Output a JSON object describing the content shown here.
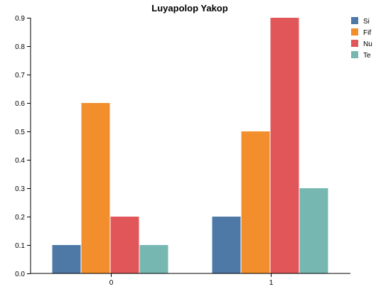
{
  "chart_data": {
    "type": "bar",
    "title": "Luyapolop Yakop",
    "xlabel": "",
    "ylabel": "",
    "categories": [
      "0",
      "1"
    ],
    "series": [
      {
        "name": "Si",
        "color": "#4e79a7",
        "values": [
          0.1,
          0.2
        ]
      },
      {
        "name": "Fif",
        "color": "#f28e2b",
        "values": [
          0.6,
          0.5
        ]
      },
      {
        "name": "Nu",
        "color": "#e15759",
        "values": [
          0.2,
          0.9
        ]
      },
      {
        "name": "Te",
        "color": "#76b7b2",
        "values": [
          0.1,
          0.3
        ]
      }
    ],
    "ylim": [
      0,
      0.9
    ],
    "yticks": [
      "0.0",
      "0.1",
      "0.2",
      "0.3",
      "0.4",
      "0.5",
      "0.6",
      "0.7",
      "0.8",
      "0.9"
    ],
    "grid": false,
    "legend_position": "top-right"
  }
}
